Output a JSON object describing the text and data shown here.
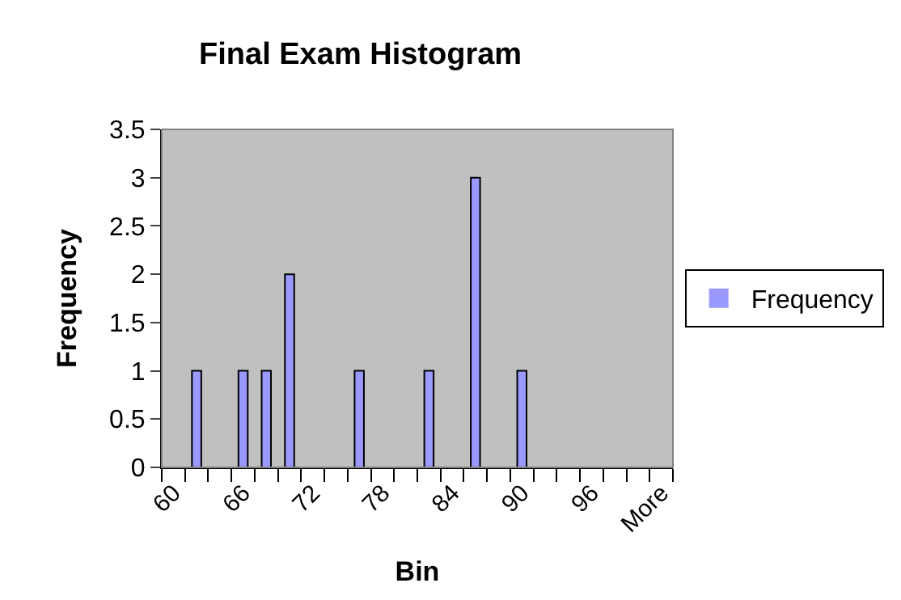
{
  "chart_data": {
    "type": "bar",
    "title": "Final Exam Histogram",
    "xlabel": "Bin",
    "ylabel": "Frequency",
    "categories": [
      "60",
      null,
      null,
      "66",
      null,
      null,
      "72",
      null,
      null,
      "78",
      null,
      null,
      "84",
      null,
      null,
      "90",
      null,
      null,
      "96",
      null,
      null,
      "More"
    ],
    "series": [
      {
        "name": "Frequency",
        "color": "#9999ff",
        "values": [
          0,
          1,
          0,
          1,
          1,
          2,
          0,
          0,
          1,
          0,
          0,
          1,
          0,
          3,
          0,
          1,
          0,
          0,
          0,
          0,
          0,
          0
        ]
      }
    ],
    "ylim": [
      0,
      3.5
    ],
    "yticks": [
      0,
      0.5,
      1,
      1.5,
      2,
      2.5,
      3,
      3.5
    ],
    "grid": false,
    "legend": "right"
  }
}
